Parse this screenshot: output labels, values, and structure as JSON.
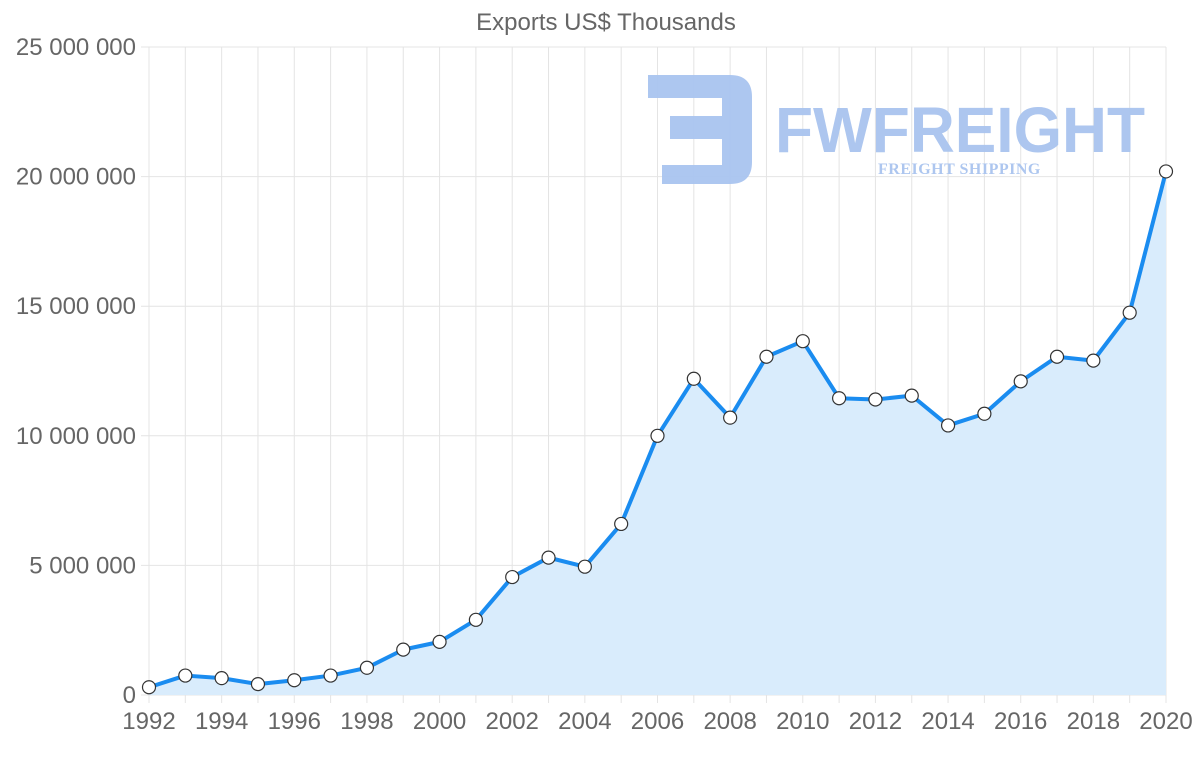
{
  "chart_data": {
    "type": "area",
    "title": "Exports US$ Thousands",
    "xlabel": "",
    "ylabel": "",
    "x": [
      1992,
      1993,
      1994,
      1995,
      1996,
      1997,
      1998,
      1999,
      2000,
      2001,
      2002,
      2003,
      2004,
      2005,
      2006,
      2007,
      2008,
      2009,
      2010,
      2011,
      2012,
      2013,
      2014,
      2015,
      2016,
      2017,
      2018,
      2019,
      2020
    ],
    "series": [
      {
        "name": "Exports US$ Thousands",
        "values": [
          300000,
          750000,
          650000,
          420000,
          570000,
          750000,
          1050000,
          1750000,
          2050000,
          2900000,
          4550000,
          5300000,
          4950000,
          6600000,
          10000000,
          12200000,
          10700000,
          13050000,
          13650000,
          11450000,
          11400000,
          11550000,
          10400000,
          10850000,
          12100000,
          13050000,
          12900000,
          14750000,
          20200000
        ],
        "line_color": "#1a8cf0",
        "fill_color": "#d9ecfc"
      }
    ],
    "xlim": [
      1992,
      2020
    ],
    "ylim": [
      0,
      25000000
    ],
    "x_ticks": [
      "1992",
      "1994",
      "1996",
      "1998",
      "2000",
      "2002",
      "2004",
      "2006",
      "2008",
      "2010",
      "2012",
      "2014",
      "2016",
      "2018",
      "2020"
    ],
    "y_ticks": [
      "0",
      "5 000 000",
      "10 000 000",
      "15 000 000",
      "20 000 000",
      "25 000 000"
    ],
    "y_tick_values": [
      0,
      5000000,
      10000000,
      15000000,
      20000000,
      25000000
    ],
    "grid": true,
    "legend": "none"
  },
  "watermark": {
    "brand": "FWFREIGHT",
    "tagline": "FREIGHT SHIPPING",
    "color": "#a9c4ef"
  }
}
